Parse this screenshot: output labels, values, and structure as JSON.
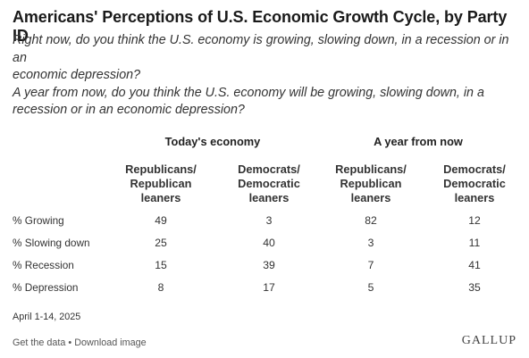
{
  "chart_data": {
    "type": "table",
    "title": "Americans' Perceptions of U.S. Economic Growth Cycle, by Party ID",
    "subtitle_lines": [
      "Right now, do you think the U.S. economy is growing, slowing down, in a recession or in an",
      "economic depression?",
      "A year from now, do you think the U.S. economy will be growing, slowing down, in a",
      "recession or in an economic depression?"
    ],
    "groups": [
      "Today's economy",
      "A year from now"
    ],
    "columns": [
      {
        "group": "Today's economy",
        "lines": [
          "Republicans/",
          "Republican",
          "leaners"
        ]
      },
      {
        "group": "Today's economy",
        "lines": [
          "Democrats/",
          "Democratic",
          "leaners"
        ]
      },
      {
        "group": "A year from now",
        "lines": [
          "Republicans/",
          "Republican",
          "leaners"
        ]
      },
      {
        "group": "A year from now",
        "lines": [
          "Democrats/",
          "Democratic",
          "leaners"
        ]
      }
    ],
    "rows": [
      {
        "label": "% Growing",
        "values": [
          "49",
          "3",
          "82",
          "12"
        ]
      },
      {
        "label": "% Slowing down",
        "values": [
          "25",
          "40",
          "3",
          "11"
        ]
      },
      {
        "label": "% Recession",
        "values": [
          "15",
          "39",
          "7",
          "41"
        ]
      },
      {
        "label": "% Depression",
        "values": [
          "8",
          "17",
          "5",
          "35"
        ]
      }
    ]
  },
  "footer": {
    "date": "April 1-14, 2025",
    "get_data": "Get the data",
    "separator": " • ",
    "download": "Download image",
    "brand": "GALLUP"
  }
}
